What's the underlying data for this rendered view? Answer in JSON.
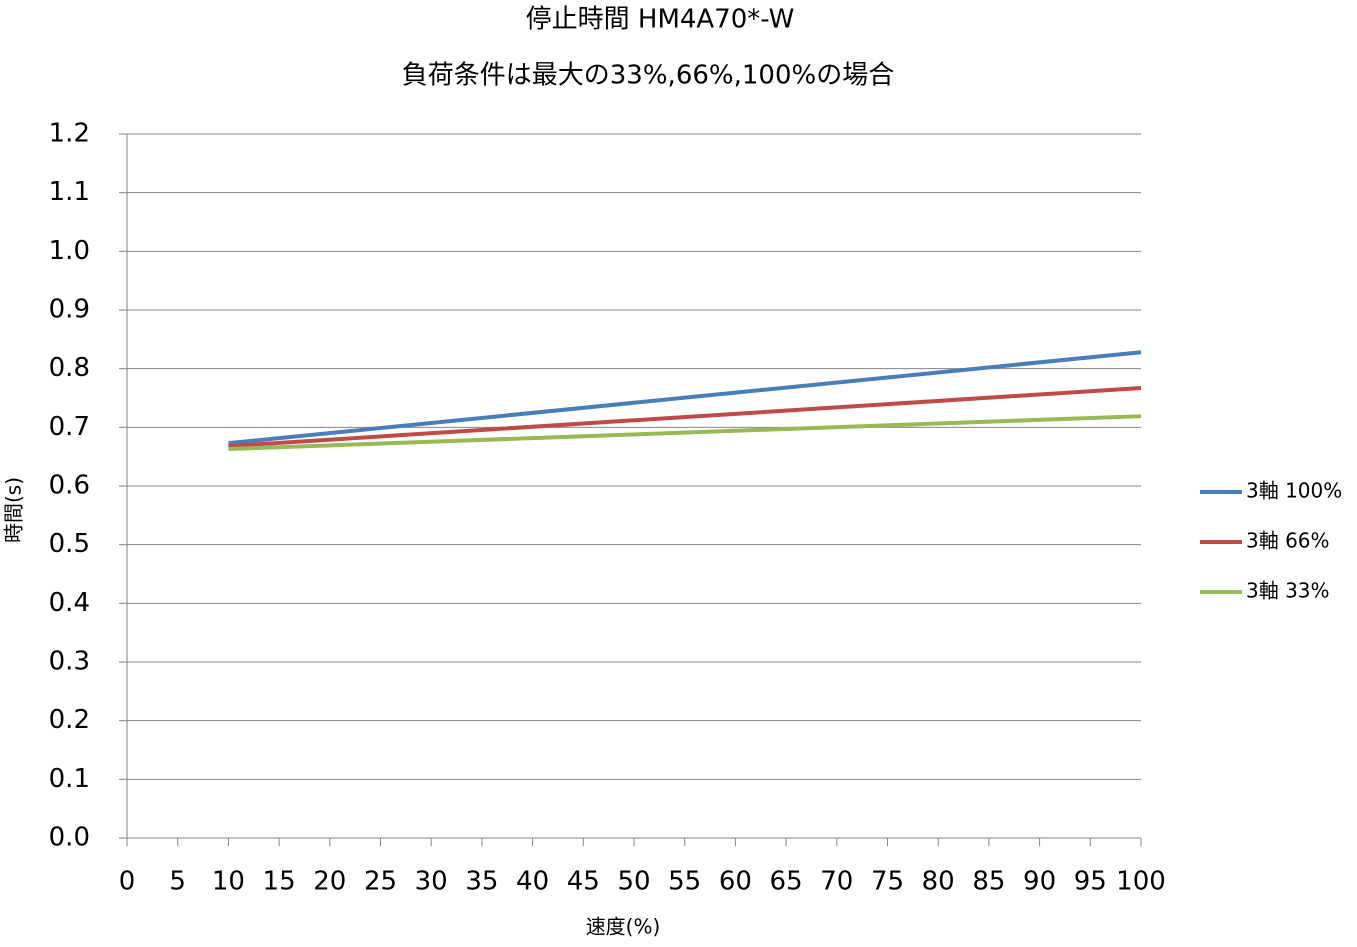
{
  "chart_data": {
    "type": "line",
    "title": "停止時間 HM4A70*-W",
    "subtitle": "負荷条件は最大の33%,66%,100%の場合",
    "x_label": "速度(%)",
    "y_label": "時間(s)",
    "x": [
      10,
      100
    ],
    "series": [
      {
        "name": "3軸 100%",
        "color": "#4a7ebb",
        "values": [
          0.673,
          0.828
        ]
      },
      {
        "name": "3軸 66%",
        "color": "#be4b48",
        "values": [
          0.668,
          0.767
        ]
      },
      {
        "name": "3軸 33%",
        "color": "#98b954",
        "values": [
          0.663,
          0.719
        ]
      }
    ],
    "xlim": [
      0,
      100
    ],
    "xticks": [
      0,
      5,
      10,
      15,
      20,
      25,
      30,
      35,
      40,
      45,
      50,
      55,
      60,
      65,
      70,
      75,
      80,
      85,
      90,
      95,
      100
    ],
    "ylim": [
      0,
      1.2
    ],
    "yticks": [
      {
        "value": 0,
        "label": "0.0"
      },
      0.1,
      0.2,
      0.3,
      0.4,
      0.5,
      0.6,
      0.7,
      0.8,
      0.9,
      {
        "value": 1,
        "label": "1.0"
      },
      1.1,
      1.2
    ],
    "grid": true,
    "legend": "right"
  }
}
